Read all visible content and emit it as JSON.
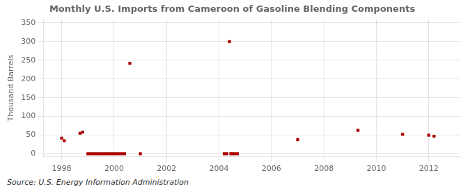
{
  "chart_data": {
    "type": "scatter",
    "title": "Monthly U.S. Imports from Cameroon of Gasoline Blending Components",
    "ylabel": "Thousand Barrels",
    "source": "Source: U.S. Energy Information Administration",
    "color": "#aa0000",
    "marker": "square",
    "grid": true,
    "xlim": [
      1997.3,
      2013.2
    ],
    "ylim": [
      -8,
      360
    ],
    "xticks": [
      1998,
      2000,
      2002,
      2004,
      2006,
      2008,
      2010,
      2012
    ],
    "yticks": [
      0,
      50,
      100,
      150,
      200,
      250,
      300,
      350
    ],
    "x": [
      1998.0,
      1998.1,
      1998.7,
      1998.8,
      1999.0,
      1999.1,
      1999.2,
      1999.3,
      1999.4,
      1999.5,
      1999.6,
      1999.7,
      1999.8,
      1999.9,
      2000.0,
      2000.1,
      2000.2,
      2000.3,
      2000.4,
      2000.6,
      2001.0,
      2004.2,
      2004.3,
      2004.4,
      2004.45,
      2004.5,
      2004.6,
      2004.7,
      2007.0,
      2009.3,
      2011.0,
      2012.0,
      2012.2
    ],
    "values": [
      42,
      35,
      55,
      58,
      0,
      0,
      0,
      0,
      0,
      0,
      0,
      0,
      0,
      0,
      0,
      0,
      0,
      0,
      0,
      242,
      0,
      0,
      0,
      300,
      0,
      0,
      0,
      0,
      38,
      63,
      52,
      50,
      47
    ]
  }
}
